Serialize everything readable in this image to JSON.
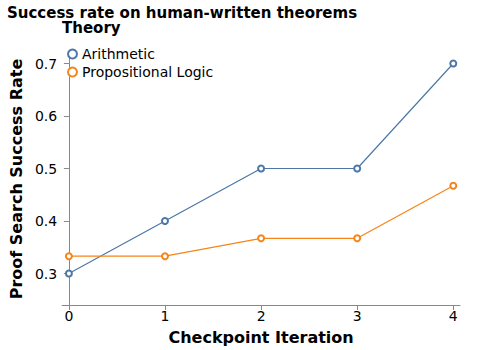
{
  "chart_data": {
    "type": "line",
    "title": "Success rate on human-written theorems",
    "x_label": "Checkpoint Iteration",
    "y_label": "Proof Search Success Rate",
    "legend_title": "Theory",
    "x": [
      0,
      1,
      2,
      3,
      4
    ],
    "series": [
      {
        "name": "Arithmetic",
        "color": "#4c78a8",
        "values": [
          0.3,
          0.4,
          0.5,
          0.5,
          0.7
        ]
      },
      {
        "name": "Propositional Logic",
        "color": "#f58518",
        "values": [
          0.333,
          0.333,
          0.367,
          0.367,
          0.467
        ]
      }
    ],
    "xlim": [
      -0.07,
      4.07
    ],
    "xticks": [
      0,
      1,
      2,
      3,
      4
    ],
    "ylim": [
      0.24,
      0.72
    ],
    "yticks": [
      0.3,
      0.4,
      0.5,
      0.6,
      0.7
    ],
    "grid": false,
    "legend": "top-left",
    "marker": "emptyCircle"
  }
}
